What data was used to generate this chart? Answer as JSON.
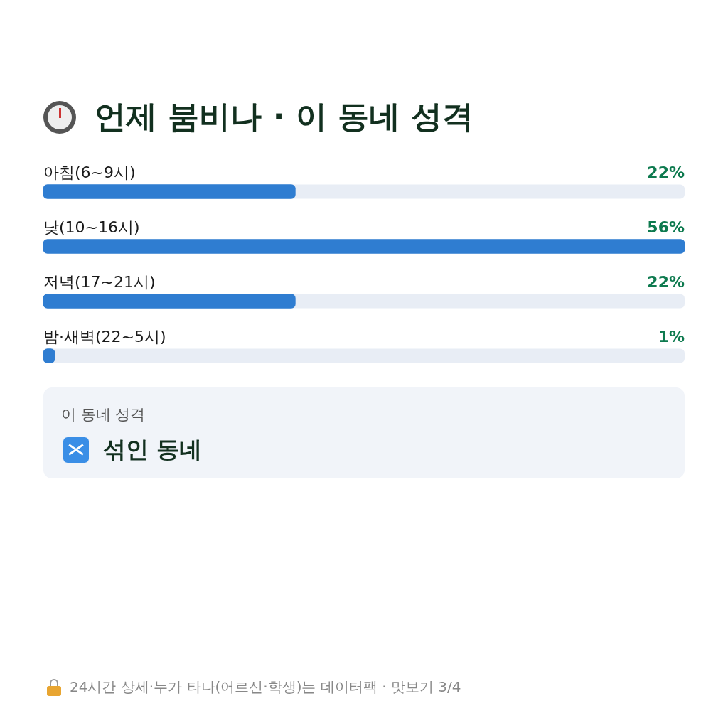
{
  "chart_data": {
    "type": "bar",
    "orientation": "horizontal",
    "title": "언제 붐비나 · 이 동네 성격",
    "categories": [
      "아침(6~9시)",
      "낮(10~16시)",
      "저녁(17~21시)",
      "밤·새벽(22~5시)"
    ],
    "values": [
      22,
      56,
      22,
      1
    ],
    "value_labels": [
      "22%",
      "56%",
      "22%",
      "1%"
    ],
    "color": "#2f7dd1",
    "tick_labels": false,
    "annotations": [
      "이 동네 성격",
      "섞인 동네",
      "24시간 상세·누가 타나(어르신·학생)는 데이터팩 · 맛보기 3/4"
    ]
  }
}
